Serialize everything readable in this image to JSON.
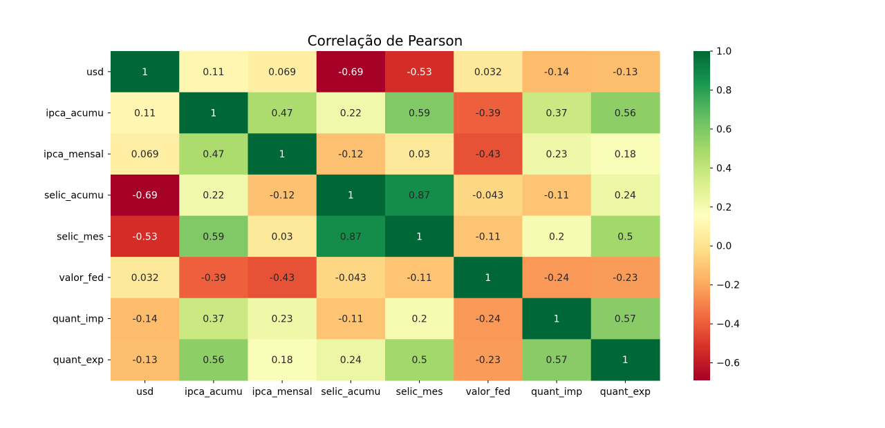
{
  "chart_data": {
    "type": "heatmap",
    "title": "Correlação de Pearson",
    "xlabel": "",
    "ylabel": "",
    "row_labels": [
      "usd",
      "ipca_acumu",
      "ipca_mensal",
      "selic_acumu",
      "selic_mes",
      "valor_fed",
      "quant_imp",
      "quant_exp"
    ],
    "col_labels": [
      "usd",
      "ipca_acumu",
      "ipca_mensal",
      "selic_acumu",
      "selic_mes",
      "valor_fed",
      "quant_imp",
      "quant_exp"
    ],
    "values": [
      [
        1,
        0.11,
        0.069,
        -0.69,
        -0.53,
        0.032,
        -0.14,
        -0.13
      ],
      [
        0.11,
        1,
        0.47,
        0.22,
        0.59,
        -0.39,
        0.37,
        0.56
      ],
      [
        0.069,
        0.47,
        1,
        -0.12,
        0.03,
        -0.43,
        0.23,
        0.18
      ],
      [
        -0.69,
        0.22,
        -0.12,
        1,
        0.87,
        -0.043,
        -0.11,
        0.24
      ],
      [
        -0.53,
        0.59,
        0.03,
        0.87,
        1,
        -0.11,
        0.2,
        0.5
      ],
      [
        0.032,
        -0.39,
        -0.43,
        -0.043,
        -0.11,
        1,
        -0.24,
        -0.23
      ],
      [
        -0.14,
        0.37,
        0.23,
        -0.11,
        0.2,
        -0.24,
        1,
        0.57
      ],
      [
        -0.13,
        0.56,
        0.18,
        0.24,
        0.5,
        -0.23,
        0.57,
        1
      ]
    ],
    "colormap": "RdYlGn",
    "vmin": -0.69,
    "vmax": 1.0,
    "colorbar_ticks": [
      {
        "value": 1.0,
        "label": "1.0"
      },
      {
        "value": 0.8,
        "label": "0.8"
      },
      {
        "value": 0.6,
        "label": "0.6"
      },
      {
        "value": 0.4,
        "label": "0.4"
      },
      {
        "value": 0.2,
        "label": "0.2"
      },
      {
        "value": 0.0,
        "label": "0.0"
      },
      {
        "value": -0.2,
        "label": "−0.2"
      },
      {
        "value": -0.4,
        "label": "−0.4"
      },
      {
        "value": -0.6,
        "label": "−0.6"
      }
    ],
    "grid": false,
    "legend": "colorbar-right"
  }
}
